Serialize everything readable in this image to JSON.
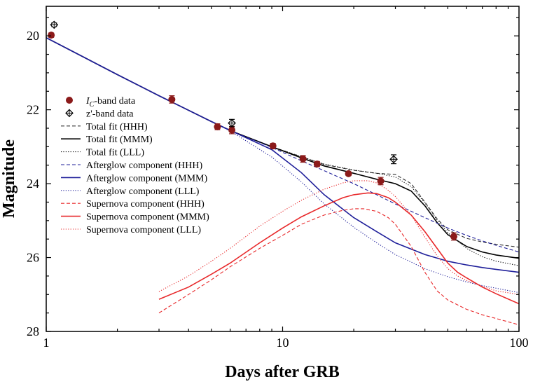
{
  "chart_data": {
    "type": "scatter",
    "xlabel": "Days after GRB",
    "ylabel": "Magnitude",
    "x_scale": "log",
    "xlim": [
      1,
      100
    ],
    "ylim": [
      28,
      19.2
    ],
    "y_inverted": true,
    "x_ticks": [
      1,
      10,
      100
    ],
    "x_tick_labels": [
      "1",
      "10",
      "100"
    ],
    "y_ticks": [
      20,
      22,
      24,
      26,
      28
    ],
    "y_tick_labels": [
      "20",
      "22",
      "24",
      "26",
      "28"
    ],
    "grid": false,
    "legend_position": "middle-left",
    "series": [
      {
        "name": "I_C-band data",
        "legend_label": {
          "pre": "I",
          "sub": "C",
          "post": "-band data"
        },
        "kind": "points",
        "marker": "filled-circle",
        "color": "#8b1a1a",
        "x": [
          1.05,
          3.4,
          5.3,
          6.1,
          9.1,
          12.2,
          14.0,
          19.0,
          26.0,
          53.0
        ],
        "y": [
          19.98,
          21.72,
          22.46,
          22.55,
          22.98,
          23.33,
          23.47,
          23.73,
          23.93,
          25.43
        ],
        "err": [
          0.06,
          0.1,
          0.08,
          0.1,
          0.07,
          0.09,
          0.07,
          0.05,
          0.1,
          0.1
        ]
      },
      {
        "name": "z'-band data",
        "legend_label": {
          "pre": "z'-band data"
        },
        "kind": "points",
        "marker": "open-diamond-cross",
        "color": "#000000",
        "x": [
          1.08,
          6.1,
          29.5
        ],
        "y": [
          19.7,
          22.36,
          23.34
        ],
        "err": [
          0.05,
          0.1,
          0.12
        ]
      },
      {
        "name": "Total fit (HHH)",
        "kind": "line",
        "style": "dashed",
        "color": "#333333",
        "x": [
          1,
          2,
          3,
          5,
          6.1,
          9,
          12,
          15,
          20,
          25,
          30,
          35,
          40,
          45,
          50,
          60,
          70,
          80,
          100
        ],
        "y": [
          20.05,
          21.05,
          21.62,
          22.32,
          22.58,
          23.0,
          23.27,
          23.48,
          23.64,
          23.72,
          23.75,
          24.0,
          24.5,
          24.95,
          25.25,
          25.48,
          25.58,
          25.64,
          25.72
        ]
      },
      {
        "name": "Total fit (MMM)",
        "kind": "line",
        "style": "solid",
        "color": "#000000",
        "x": [
          1,
          2,
          3,
          5,
          6.1,
          9,
          12,
          15,
          20,
          25,
          30,
          35,
          40,
          45,
          50,
          60,
          70,
          80,
          100
        ],
        "y": [
          20.05,
          21.05,
          21.62,
          22.32,
          22.58,
          23.0,
          23.3,
          23.52,
          23.72,
          23.88,
          24.0,
          24.2,
          24.6,
          25.05,
          25.38,
          25.7,
          25.85,
          25.93,
          26.02
        ]
      },
      {
        "name": "Total fit (LLL)",
        "kind": "line",
        "style": "dotted",
        "color": "#000000",
        "x": [
          1,
          2,
          3,
          5,
          6.1,
          9,
          12,
          15,
          20,
          25,
          30,
          35,
          40,
          45,
          50,
          60,
          70,
          80,
          100
        ],
        "y": [
          20.05,
          21.05,
          21.62,
          22.32,
          22.58,
          23.0,
          23.27,
          23.47,
          23.63,
          23.72,
          23.82,
          24.08,
          24.52,
          24.98,
          25.33,
          25.75,
          25.98,
          26.1,
          26.22
        ]
      },
      {
        "name": "Afterglow component (HHH)",
        "kind": "line",
        "style": "dashed",
        "color": "#1f1f9a",
        "x": [
          1,
          2,
          3,
          5,
          6.1,
          9,
          12,
          15,
          20,
          25,
          30,
          40,
          50,
          60,
          70,
          80,
          100
        ],
        "y": [
          20.05,
          21.05,
          21.62,
          22.32,
          22.58,
          23.02,
          23.38,
          23.65,
          24.0,
          24.3,
          24.55,
          24.92,
          25.2,
          25.4,
          25.55,
          25.67,
          25.85
        ]
      },
      {
        "name": "Afterglow component (MMM)",
        "kind": "line",
        "style": "solid",
        "color": "#1f1f9a",
        "x": [
          1,
          2,
          3,
          5,
          6.1,
          9,
          12,
          15,
          20,
          25,
          30,
          40,
          50,
          60,
          70,
          80,
          100
        ],
        "y": [
          20.05,
          21.05,
          21.62,
          22.32,
          22.58,
          23.08,
          23.7,
          24.3,
          24.92,
          25.3,
          25.6,
          25.92,
          26.1,
          26.2,
          26.27,
          26.32,
          26.4
        ]
      },
      {
        "name": "Afterglow component (LLL)",
        "kind": "line",
        "style": "dotted",
        "color": "#1f1f9a",
        "x": [
          1,
          2,
          3,
          5,
          6.1,
          9,
          12,
          15,
          20,
          25,
          30,
          40,
          50,
          60,
          70,
          80,
          100
        ],
        "y": [
          20.05,
          21.05,
          21.62,
          22.32,
          22.6,
          23.28,
          23.95,
          24.55,
          25.18,
          25.6,
          25.92,
          26.3,
          26.52,
          26.66,
          26.76,
          26.83,
          26.95
        ]
      },
      {
        "name": "Supernova component (HHH)",
        "kind": "line",
        "style": "dashed",
        "color": "#e8282a",
        "x": [
          3,
          4,
          5,
          6,
          8,
          10,
          12,
          15,
          18,
          20,
          22,
          25,
          28,
          30,
          35,
          40,
          45,
          50,
          60,
          70,
          80,
          100
        ],
        "y": [
          27.5,
          27.0,
          26.6,
          26.25,
          25.75,
          25.4,
          25.1,
          24.85,
          24.72,
          24.68,
          24.68,
          24.75,
          24.92,
          25.1,
          25.7,
          26.4,
          26.9,
          27.15,
          27.4,
          27.55,
          27.65,
          27.82
        ]
      },
      {
        "name": "Supernova component (MMM)",
        "kind": "line",
        "style": "solid",
        "color": "#e8282a",
        "x": [
          3,
          4,
          5,
          6,
          8,
          10,
          12,
          15,
          18,
          20,
          23,
          25,
          28,
          30,
          35,
          40,
          45,
          50,
          55,
          60,
          70,
          80,
          100
        ],
        "y": [
          27.13,
          26.8,
          26.45,
          26.15,
          25.6,
          25.2,
          24.9,
          24.6,
          24.38,
          24.3,
          24.25,
          24.27,
          24.38,
          24.5,
          24.85,
          25.3,
          25.75,
          26.15,
          26.4,
          26.55,
          26.8,
          26.98,
          27.25
        ]
      },
      {
        "name": "Supernova component (LLL)",
        "kind": "line",
        "style": "dotted",
        "color": "#e8282a",
        "x": [
          3,
          4,
          5,
          6,
          8,
          10,
          12,
          15,
          18,
          20,
          23,
          25,
          28,
          30,
          35,
          40,
          45,
          50,
          55,
          60,
          70,
          80,
          100
        ],
        "y": [
          26.92,
          26.5,
          26.1,
          25.75,
          25.15,
          24.75,
          24.45,
          24.15,
          23.98,
          23.92,
          23.92,
          23.98,
          24.18,
          24.35,
          24.85,
          25.45,
          25.95,
          26.3,
          26.5,
          26.62,
          26.78,
          26.9,
          27.0
        ]
      }
    ]
  }
}
